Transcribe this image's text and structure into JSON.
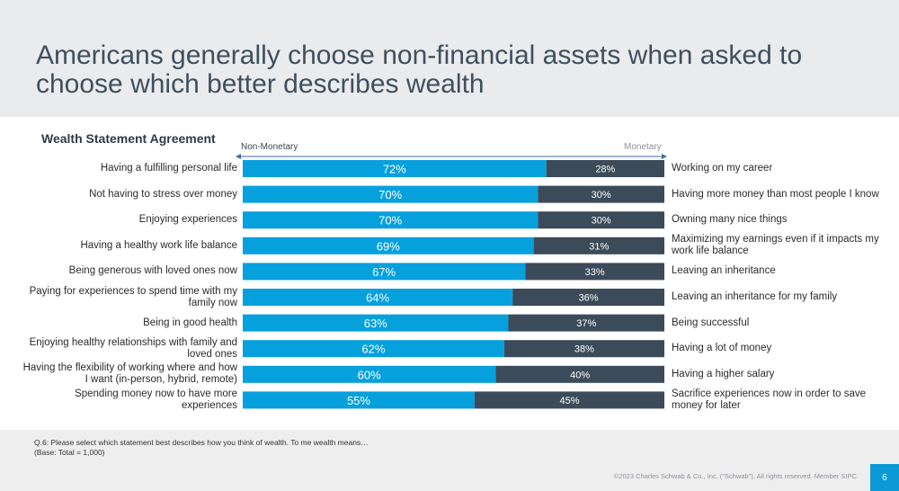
{
  "page": {
    "title": "Americans generally choose non-financial assets when asked to choose which better describes wealth",
    "footnote_line1": "Q.6:  Please select which statement best describes how you think of wealth.  To me wealth means…",
    "footnote_line2": "(Base: Total = 1,000)",
    "copyright": "©2023 Charles Schwab & Co., Inc. (\"Schwab\"). All rights reserved. Member SIPC.",
    "page_number": "6"
  },
  "colors": {
    "non_monetary": "#06a0dd",
    "monetary": "#3c4b5a",
    "axis_arrow": "#3d6fa0"
  },
  "chart_data": {
    "type": "bar",
    "orientation": "horizontal-stacked-100",
    "title": "Wealth Statement Agreement",
    "axis_left_label": "Non-Monetary",
    "axis_right_label": "Monetary",
    "series": [
      {
        "name": "Non-Monetary",
        "values": [
          72,
          70,
          70,
          69,
          67,
          64,
          63,
          62,
          60,
          55
        ]
      },
      {
        "name": "Monetary",
        "values": [
          28,
          30,
          30,
          31,
          33,
          36,
          37,
          38,
          40,
          45
        ]
      }
    ],
    "value_labels_nonmonetary": [
      "72%",
      "70%",
      "70%",
      "69%",
      "67%",
      "64%",
      "63%",
      "62%",
      "60%",
      "55%"
    ],
    "value_labels_monetary": [
      "28%",
      "30%",
      "30%",
      "31%",
      "33%",
      "36%",
      "37%",
      "38%",
      "40%",
      "45%"
    ],
    "left_labels": [
      "Having a fulfilling personal life",
      "Not having to stress over money",
      "Enjoying experiences",
      "Having a healthy work life balance",
      "Being generous with loved ones now",
      "Paying for experiences to spend time with my family now",
      "Being in good health",
      "Enjoying healthy relationships with family and loved ones",
      "Having the flexibility of working where and how I want (in-person, hybrid, remote)",
      "Spending money now to have more experiences"
    ],
    "right_labels": [
      "Working on my career",
      "Having more money than most people I know",
      "Owning many nice things",
      "Maximizing my earnings even if it impacts my work life balance",
      "Leaving an inheritance",
      "Leaving an inheritance for my family",
      "Being successful",
      "Having a lot of money",
      "Having a higher salary",
      "Sacrifice experiences now in order to save money for later"
    ],
    "xlim": [
      0,
      100
    ]
  }
}
